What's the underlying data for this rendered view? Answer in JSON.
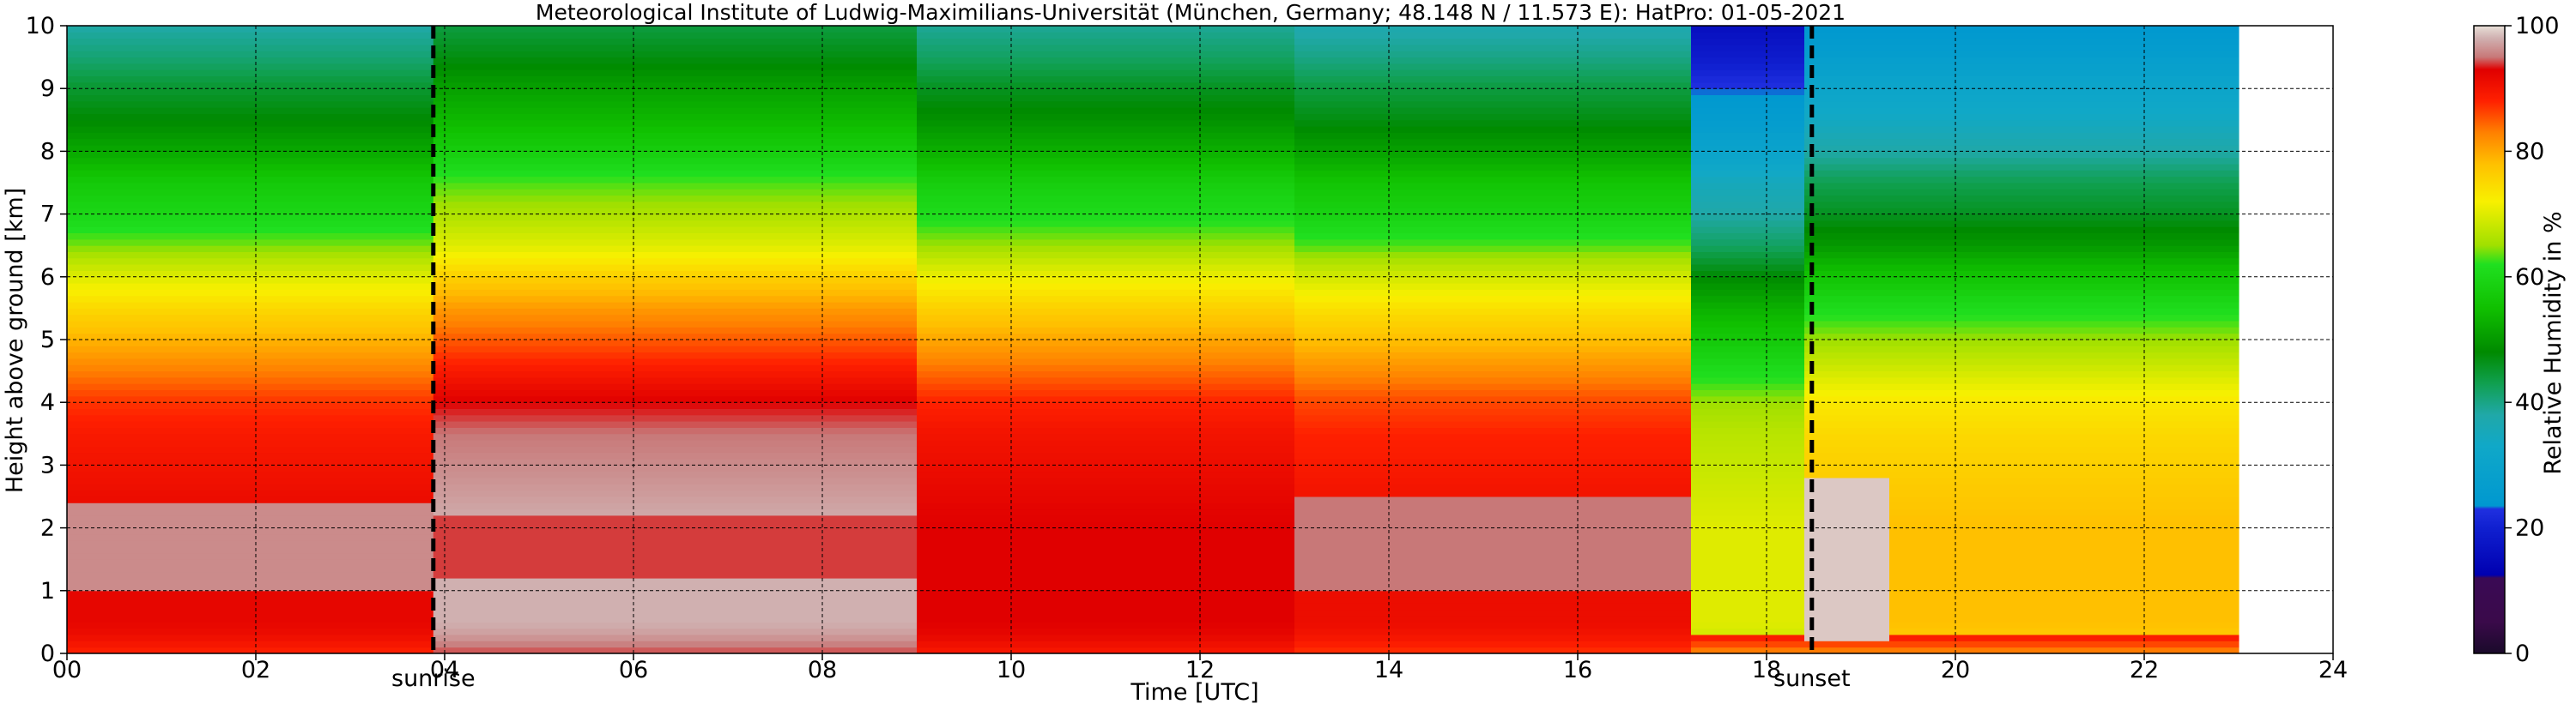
{
  "chart_data": {
    "type": "heatmap",
    "title": "Meteorological Institute of Ludwig-Maximilians-Universität (München, Germany; 48.148 N / 11.573 E):    HatPro: 01-05-2021",
    "xlabel": "Time [UTC]",
    "ylabel": "Height above ground [km]",
    "colorbar_label": "Relative Humidity in %",
    "xlim": [
      0,
      24
    ],
    "ylim": [
      0,
      10
    ],
    "data_end_hour": 23.0,
    "x_ticks": [
      0,
      2,
      4,
      6,
      8,
      10,
      12,
      14,
      16,
      18,
      20,
      22,
      24
    ],
    "x_tick_labels": [
      "00",
      "02",
      "04",
      "06",
      "08",
      "10",
      "12",
      "14",
      "16",
      "18",
      "20",
      "22",
      "24"
    ],
    "y_ticks": [
      0,
      1,
      2,
      3,
      4,
      5,
      6,
      7,
      8,
      9,
      10
    ],
    "y_tick_labels": [
      "0",
      "1",
      "2",
      "3",
      "4",
      "5",
      "6",
      "7",
      "8",
      "9",
      "10"
    ],
    "colorbar_ticks": [
      0,
      20,
      40,
      60,
      80,
      100
    ],
    "colorbar_tick_labels": [
      "0",
      "20",
      "40",
      "60",
      "80",
      "100"
    ],
    "grid": true,
    "vertical_markers": [
      {
        "label": "sunrise",
        "hour": 3.88
      },
      {
        "label": "sunset",
        "hour": 18.48
      }
    ],
    "colormap": [
      {
        "v": 0,
        "c": "#1a0a2a"
      },
      {
        "v": 5,
        "c": "#3a0a4a"
      },
      {
        "v": 12,
        "c": "#3a0a55"
      },
      {
        "v": 12.5,
        "c": "#0000b0"
      },
      {
        "v": 20,
        "c": "#1020d0"
      },
      {
        "v": 23,
        "c": "#2030e0"
      },
      {
        "v": 23.5,
        "c": "#0098d0"
      },
      {
        "v": 33,
        "c": "#10a8c8"
      },
      {
        "v": 38,
        "c": "#20a8a8"
      },
      {
        "v": 43,
        "c": "#10a050"
      },
      {
        "v": 48,
        "c": "#008a00"
      },
      {
        "v": 55,
        "c": "#10c000"
      },
      {
        "v": 62,
        "c": "#20e020"
      },
      {
        "v": 65,
        "c": "#a0e000"
      },
      {
        "v": 72,
        "c": "#f8f000"
      },
      {
        "v": 78,
        "c": "#ffc000"
      },
      {
        "v": 83,
        "c": "#ff8000"
      },
      {
        "v": 88,
        "c": "#ff2000"
      },
      {
        "v": 93,
        "c": "#e00000"
      },
      {
        "v": 95,
        "c": "#c87878"
      },
      {
        "v": 98,
        "c": "#d0b0b0"
      },
      {
        "v": 100,
        "c": "#e8e0d8"
      }
    ],
    "base_profile": {
      "heights_km": [
        0,
        0.3,
        0.5,
        1.0,
        1.5,
        2.0,
        2.5,
        3.0,
        3.5,
        4.0,
        4.5,
        5.0,
        5.5,
        6.0,
        6.5,
        7.0,
        7.5,
        8.0,
        8.5,
        9.0,
        9.5,
        10.0
      ],
      "rh_percent": [
        88,
        91,
        92,
        92,
        92,
        92,
        91,
        90,
        89,
        87,
        83,
        79,
        75,
        70,
        64,
        60,
        57,
        52,
        48,
        45,
        41,
        38
      ]
    },
    "periods": [
      {
        "hours": [
          0.0,
          3.88
        ],
        "shift": 0,
        "white_band_km": [
          1.0,
          2.4
        ],
        "white_band_rh": 96
      },
      {
        "hours": [
          3.88,
          9.0
        ],
        "shift": 6,
        "white_band_km": [
          1.2,
          2.2
        ],
        "white_band_rh": 94
      },
      {
        "hours": [
          9.0,
          13.0
        ],
        "shift": 1,
        "white_band_km": [],
        "white_band_rh": 92
      },
      {
        "hours": [
          13.0,
          17.2
        ],
        "shift": -1,
        "white_band_km": [
          1.0,
          2.5
        ],
        "white_band_rh": 95
      },
      {
        "hours": [
          17.2,
          18.4
        ],
        "shift": -22,
        "white_band_km": [],
        "white_band_rh": 92
      },
      {
        "hours": [
          18.4,
          19.3
        ],
        "shift": -14,
        "white_band_km": [
          0.2,
          2.8
        ],
        "white_band_rh": 99
      },
      {
        "hours": [
          19.3,
          23.0
        ],
        "shift": -14,
        "white_band_km": [],
        "white_band_rh": 92
      }
    ]
  }
}
